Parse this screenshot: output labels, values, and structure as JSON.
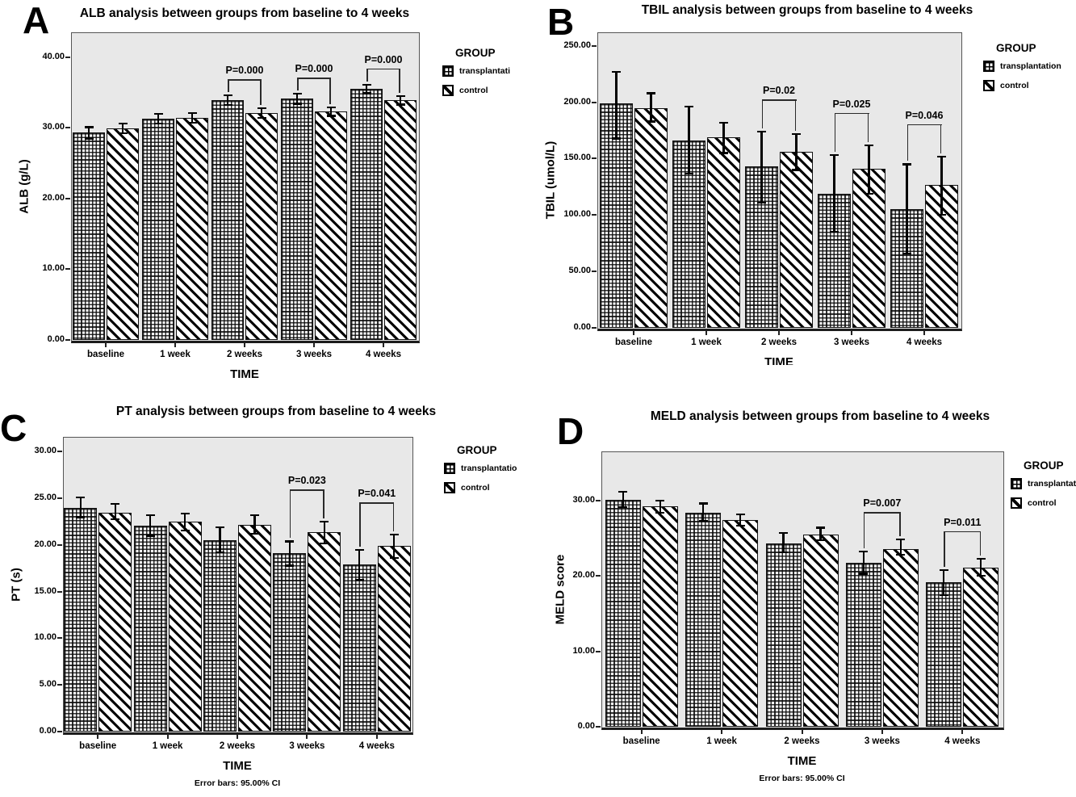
{
  "colors": {
    "plot_background": "#e8e8e8",
    "ink": "#000000",
    "page_background": "#ffffff"
  },
  "chart_data": [
    {
      "type": "bar",
      "panel_label": "A",
      "title": "ALB analysis between groups from baseline to 4 weeks",
      "xlabel": "TIME",
      "ylabel": "ALB (g/L)",
      "categories": [
        "baseline",
        "1 week",
        "2 weeks",
        "3 weeks",
        "4 weeks"
      ],
      "ytick_labels": [
        "0.00",
        "10.00",
        "20.00",
        "30.00",
        "40.00"
      ],
      "ytick_values": [
        0,
        10,
        20,
        30,
        40
      ],
      "ylim": [
        0,
        43.5
      ],
      "legend_title": "GROUP",
      "legend_position": "right",
      "grid": false,
      "series": [
        {
          "name": "transplantation",
          "legend_label": "transplantati",
          "pattern": "grid",
          "values": [
            29.3,
            31.3,
            33.9,
            34.1,
            35.5
          ],
          "err_low": [
            28.5,
            30.6,
            33.2,
            33.4,
            34.9
          ],
          "err_high": [
            30.1,
            32.0,
            34.6,
            34.8,
            36.1
          ]
        },
        {
          "name": "control",
          "legend_label": "control",
          "pattern": "diagonal",
          "values": [
            29.9,
            31.4,
            32.1,
            32.3,
            33.9
          ],
          "err_low": [
            29.2,
            30.7,
            31.4,
            31.7,
            33.3
          ],
          "err_high": [
            30.6,
            32.1,
            32.8,
            32.9,
            34.5
          ]
        }
      ],
      "annotations": [
        {
          "category": "2 weeks",
          "cat_index": 2,
          "text": "P=0.000"
        },
        {
          "category": "3 weeks",
          "cat_index": 3,
          "text": "P=0.000"
        },
        {
          "category": "4 weeks",
          "cat_index": 4,
          "text": "P=0.000"
        }
      ],
      "footer": ""
    },
    {
      "type": "bar",
      "panel_label": "B",
      "title": "TBIL analysis between groups from baseline to 4 weeks",
      "xlabel": "TIME",
      "ylabel": "TBIL (umol/L)",
      "categories": [
        "baseline",
        "1 week",
        "2 weeks",
        "3 weeks",
        "4 weeks"
      ],
      "ytick_labels": [
        "0.00",
        "50.00",
        "100.00",
        "150.00",
        "200.00",
        "250.00"
      ],
      "ytick_values": [
        0,
        50,
        100,
        150,
        200,
        250
      ],
      "ylim": [
        0,
        262
      ],
      "legend_title": "GROUP",
      "legend_position": "right",
      "grid": false,
      "series": [
        {
          "name": "transplantation",
          "legend_label": "transplantation",
          "pattern": "grid",
          "values": [
            199,
            166,
            143,
            119,
            105
          ],
          "err_low": [
            168,
            137,
            111,
            85,
            66
          ],
          "err_high": [
            227,
            196,
            174,
            153,
            145
          ]
        },
        {
          "name": "control",
          "legend_label": "control",
          "pattern": "diagonal",
          "values": [
            195,
            169,
            156,
            141,
            127
          ],
          "err_low": [
            183,
            155,
            140,
            119,
            100
          ],
          "err_high": [
            208,
            182,
            172,
            162,
            152
          ]
        }
      ],
      "annotations": [
        {
          "category": "2 weeks",
          "cat_index": 2,
          "text": "P=0.02"
        },
        {
          "category": "3 weeks",
          "cat_index": 3,
          "text": "P=0.025"
        },
        {
          "category": "4 weeks",
          "cat_index": 4,
          "text": "P=0.046"
        }
      ],
      "footer": ""
    },
    {
      "type": "bar",
      "panel_label": "C",
      "title": "PT analysis between groups from baseline to 4 weeks",
      "xlabel": "TIME",
      "ylabel": "PT (s)",
      "categories": [
        "baseline",
        "1 week",
        "2 weeks",
        "3 weeks",
        "4 weeks"
      ],
      "ytick_labels": [
        "0.00",
        "5.00",
        "10.00",
        "15.00",
        "20.00",
        "25.00",
        "30.00"
      ],
      "ytick_values": [
        0,
        5,
        10,
        15,
        20,
        25,
        30
      ],
      "ylim": [
        0,
        31.6
      ],
      "legend_title": "GROUP",
      "legend_position": "right",
      "grid": false,
      "series": [
        {
          "name": "transplantation",
          "legend_label": "transplantatio",
          "pattern": "grid",
          "values": [
            24.0,
            22.1,
            20.5,
            19.1,
            17.9
          ],
          "err_low": [
            23.0,
            21.0,
            19.2,
            17.8,
            16.3
          ],
          "err_high": [
            25.1,
            23.2,
            21.9,
            20.4,
            19.5
          ]
        },
        {
          "name": "control",
          "legend_label": "control",
          "pattern": "diagonal",
          "values": [
            23.5,
            22.5,
            22.2,
            21.4,
            19.9
          ],
          "err_low": [
            22.8,
            21.6,
            21.2,
            20.2,
            18.6
          ],
          "err_high": [
            24.4,
            23.4,
            23.2,
            22.5,
            21.1
          ]
        }
      ],
      "annotations": [
        {
          "category": "3 weeks",
          "cat_index": 3,
          "text": "P=0.023"
        },
        {
          "category": "4 weeks",
          "cat_index": 4,
          "text": "P=0.041"
        }
      ],
      "footer": "Error bars: 95.00% CI"
    },
    {
      "type": "bar",
      "panel_label": "D",
      "title": "MELD analysis between groups from baseline to 4 weeks",
      "xlabel": "TIME",
      "ylabel": "MELD score",
      "categories": [
        "baseline",
        "1 week",
        "2 weeks",
        "3 weeks",
        "4 weeks"
      ],
      "ytick_labels": [
        "0.00",
        "10.00",
        "20.00",
        "30.00"
      ],
      "ytick_values": [
        0,
        10,
        20,
        30
      ],
      "ylim": [
        0,
        36.5
      ],
      "legend_title": "GROUP",
      "legend_position": "right",
      "grid": false,
      "series": [
        {
          "name": "transplantation",
          "legend_label": "transplantation",
          "pattern": "grid",
          "values": [
            30.1,
            28.4,
            24.3,
            21.7,
            19.2
          ],
          "err_low": [
            29.1,
            27.3,
            23.1,
            20.3,
            17.5
          ],
          "err_high": [
            31.2,
            29.6,
            25.7,
            23.2,
            20.8
          ]
        },
        {
          "name": "control",
          "legend_label": "control",
          "pattern": "diagonal",
          "values": [
            29.2,
            27.4,
            25.5,
            23.6,
            21.1
          ],
          "err_low": [
            28.4,
            26.7,
            24.7,
            22.8,
            20.0
          ],
          "err_high": [
            30.0,
            28.2,
            26.4,
            24.8,
            22.3
          ]
        }
      ],
      "annotations": [
        {
          "category": "3 weeks",
          "cat_index": 3,
          "text": "P=0.007"
        },
        {
          "category": "4 weeks",
          "cat_index": 4,
          "text": "P=0.011"
        }
      ],
      "footer": "Error bars: 95.00% CI"
    }
  ]
}
